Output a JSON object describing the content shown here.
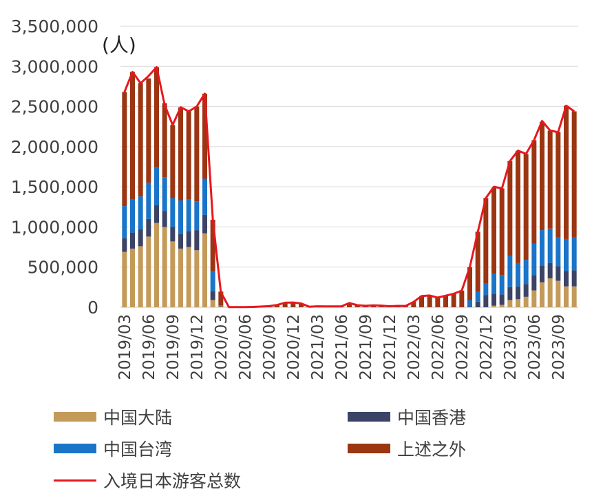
{
  "unit_label": "(人)",
  "legend": [
    {
      "label": "中国大陆",
      "color": "#c49a5a",
      "kind": "bar"
    },
    {
      "label": "中国香港",
      "color": "#3b4466",
      "kind": "bar"
    },
    {
      "label": "中国台湾",
      "color": "#1a74c8",
      "kind": "bar"
    },
    {
      "label": "上述之外",
      "color": "#9b3512",
      "kind": "bar"
    },
    {
      "label": "入境日本游客总数",
      "color": "#e8171e",
      "kind": "line"
    }
  ],
  "chart_data": {
    "type": "bar",
    "stacked": true,
    "ylim": [
      0,
      3500000
    ],
    "yticks": [
      "0",
      "500,000",
      "1,000,000",
      "1,500,000",
      "2,000,000",
      "2,500,000",
      "3,000,000",
      "3,500,000"
    ],
    "x_tick_labels": [
      "2019/03",
      "2019/06",
      "2019/09",
      "2019/12",
      "2020/03",
      "2020/06",
      "2020/09",
      "2020/12",
      "2021/03",
      "2021/06",
      "2021/09",
      "2021/12",
      "2022/03",
      "2022/06",
      "2022/09",
      "2022/12",
      "2023/03",
      "2023/06",
      "2023/09"
    ],
    "categories": [
      "2019/03",
      "2019/04",
      "2019/05",
      "2019/06",
      "2019/07",
      "2019/08",
      "2019/09",
      "2019/10",
      "2019/11",
      "2019/12",
      "2020/01",
      "2020/02",
      "2020/03",
      "2020/04",
      "2020/05",
      "2020/06",
      "2020/07",
      "2020/08",
      "2020/09",
      "2020/10",
      "2020/11",
      "2020/12",
      "2021/01",
      "2021/02",
      "2021/03",
      "2021/04",
      "2021/05",
      "2021/06",
      "2021/07",
      "2021/08",
      "2021/09",
      "2021/10",
      "2021/11",
      "2021/12",
      "2022/01",
      "2022/02",
      "2022/03",
      "2022/04",
      "2022/05",
      "2022/06",
      "2022/07",
      "2022/08",
      "2022/09",
      "2022/10",
      "2022/11",
      "2022/12",
      "2023/01",
      "2023/02",
      "2023/03",
      "2023/04",
      "2023/05",
      "2023/06",
      "2023/07",
      "2023/08",
      "2023/09",
      "2023/10",
      "2023/11"
    ],
    "series": [
      {
        "name": "中国大陆",
        "values": [
          690000,
          730000,
          760000,
          880000,
          1050000,
          1000000,
          820000,
          730000,
          750000,
          710000,
          920000,
          90000,
          10000,
          0,
          0,
          0,
          0,
          0,
          0,
          0,
          0,
          0,
          0,
          0,
          0,
          0,
          0,
          0,
          0,
          0,
          0,
          0,
          0,
          0,
          0,
          0,
          0,
          0,
          0,
          0,
          0,
          0,
          0,
          0,
          0,
          0,
          20000,
          30000,
          90000,
          100000,
          130000,
          210000,
          310000,
          360000,
          330000,
          260000,
          260000
        ]
      },
      {
        "name": "中国香港",
        "values": [
          170000,
          200000,
          210000,
          220000,
          220000,
          200000,
          180000,
          180000,
          200000,
          250000,
          230000,
          110000,
          10000,
          0,
          0,
          0,
          0,
          0,
          0,
          0,
          0,
          0,
          0,
          0,
          0,
          0,
          0,
          0,
          0,
          0,
          0,
          0,
          0,
          0,
          0,
          0,
          0,
          0,
          0,
          0,
          0,
          0,
          0,
          10000,
          70000,
          150000,
          150000,
          130000,
          160000,
          160000,
          160000,
          190000,
          210000,
          190000,
          180000,
          190000,
          200000
        ]
      },
      {
        "name": "中国台湾",
        "values": [
          400000,
          410000,
          410000,
          450000,
          470000,
          420000,
          360000,
          420000,
          390000,
          360000,
          450000,
          250000,
          5000,
          0,
          0,
          0,
          0,
          0,
          0,
          0,
          0,
          0,
          0,
          0,
          0,
          0,
          0,
          0,
          0,
          0,
          0,
          0,
          0,
          0,
          0,
          0,
          0,
          0,
          0,
          0,
          0,
          0,
          0,
          80000,
          120000,
          150000,
          250000,
          240000,
          390000,
          290000,
          300000,
          390000,
          440000,
          430000,
          360000,
          400000,
          410000
        ]
      },
      {
        "name": "上述之外",
        "values": [
          1420000,
          1590000,
          1410000,
          1300000,
          1250000,
          920000,
          910000,
          1160000,
          1100000,
          1180000,
          1060000,
          640000,
          170000,
          3000,
          2000,
          3000,
          4000,
          9000,
          14000,
          28000,
          57000,
          59000,
          47000,
          7000,
          12000,
          11000,
          10000,
          10000,
          52000,
          26000,
          18000,
          23000,
          21000,
          12000,
          17000,
          16000,
          66000,
          140000,
          147000,
          120000,
          144000,
          168000,
          207000,
          410000,
          750000,
          1060000,
          1070000,
          1080000,
          1180000,
          1400000,
          1320000,
          1290000,
          1350000,
          1220000,
          1310000,
          1660000,
          1570000
        ]
      }
    ],
    "line": {
      "name": "入境日本游客总数",
      "values": [
        2680000,
        2930000,
        2790000,
        2880000,
        2990000,
        2520000,
        2270000,
        2490000,
        2440000,
        2500000,
        2660000,
        1090000,
        190000,
        3000,
        2000,
        3000,
        4000,
        9000,
        14000,
        28000,
        57000,
        59000,
        47000,
        7000,
        12000,
        11000,
        10000,
        10000,
        52000,
        26000,
        18000,
        23000,
        21000,
        12000,
        17000,
        16000,
        66000,
        140000,
        147000,
        120000,
        144000,
        168000,
        207000,
        500000,
        940000,
        1360000,
        1500000,
        1480000,
        1820000,
        1950000,
        1910000,
        2080000,
        2320000,
        2200000,
        2180000,
        2510000,
        2440000
      ]
    }
  }
}
